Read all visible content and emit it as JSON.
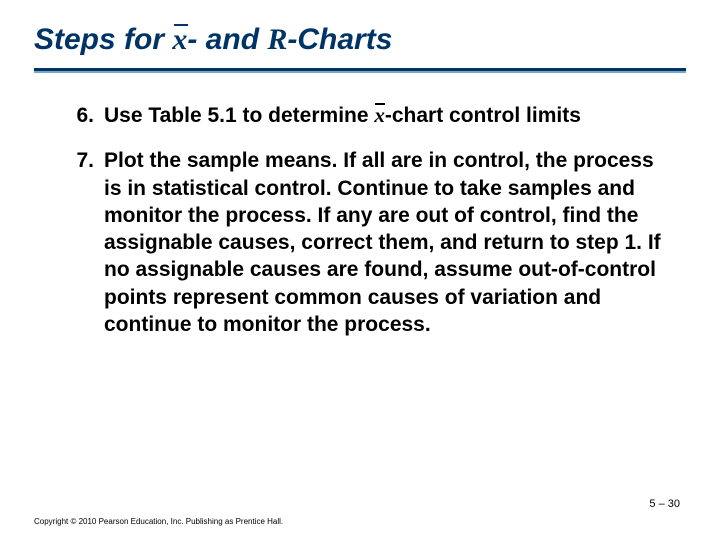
{
  "title": {
    "prefix": "Steps for ",
    "xbar": "x",
    "mid": "- and ",
    "r": "R",
    "suffix": "-Charts"
  },
  "colors": {
    "title_color": "#003366",
    "rule_color": "#003366",
    "rule_shadow": "#7aa7c6",
    "text_color": "#000000",
    "background": "#ffffff"
  },
  "items": [
    {
      "num": "6.",
      "pre": "Use Table 5.1 to determine ",
      "xbar": "x",
      "post": "-chart control limits"
    },
    {
      "num": "7.",
      "text": "Plot the sample means. If all are in control, the process is in statistical control. Continue to take samples and monitor the process. If any are out of control, find the assignable causes, correct them, and return to step 1. If no assignable causes are found, assume out-of-control points represent common causes of variation and continue to monitor the process."
    }
  ],
  "pagenum": "5 – 30",
  "copyright": "Copyright © 2010 Pearson Education, Inc. Publishing as Prentice Hall."
}
